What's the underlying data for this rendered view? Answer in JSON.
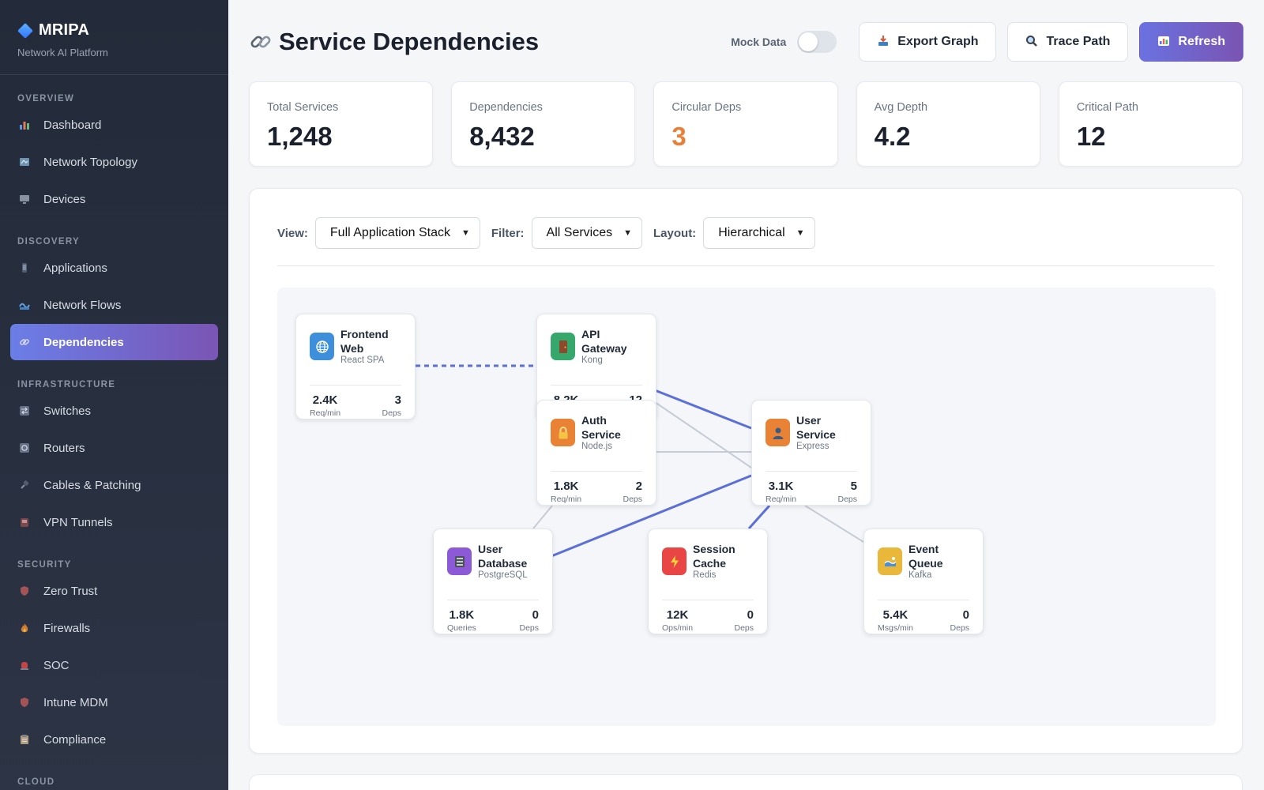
{
  "brand": {
    "name": "MRIPA",
    "subtitle": "Network AI Platform"
  },
  "sidebar": {
    "sections": [
      {
        "label": "OVERVIEW",
        "items": [
          {
            "label": "Dashboard",
            "icon": "bar-chart-icon"
          },
          {
            "label": "Network Topology",
            "icon": "map-icon"
          },
          {
            "label": "Devices",
            "icon": "monitor-icon"
          }
        ]
      },
      {
        "label": "DISCOVERY",
        "items": [
          {
            "label": "Applications",
            "icon": "phone-icon"
          },
          {
            "label": "Network Flows",
            "icon": "wave-icon"
          },
          {
            "label": "Dependencies",
            "icon": "link-icon",
            "active": true
          }
        ]
      },
      {
        "label": "INFRASTRUCTURE",
        "items": [
          {
            "label": "Switches",
            "icon": "switch-icon"
          },
          {
            "label": "Routers",
            "icon": "router-icon"
          },
          {
            "label": "Cables & Patching",
            "icon": "plug-icon"
          },
          {
            "label": "VPN Tunnels",
            "icon": "tunnel-icon"
          }
        ]
      },
      {
        "label": "SECURITY",
        "items": [
          {
            "label": "Zero Trust",
            "icon": "shield-icon"
          },
          {
            "label": "Firewalls",
            "icon": "fire-icon"
          },
          {
            "label": "SOC",
            "icon": "alarm-icon"
          },
          {
            "label": "Intune MDM",
            "icon": "shield-icon"
          },
          {
            "label": "Compliance",
            "icon": "clipboard-icon"
          }
        ]
      },
      {
        "label": "CLOUD",
        "items": []
      }
    ]
  },
  "header": {
    "title": "Service Dependencies",
    "mock_label": "Mock Data",
    "mock_enabled": false,
    "buttons": {
      "export": "Export Graph",
      "trace": "Trace Path",
      "refresh": "Refresh"
    }
  },
  "stats": [
    {
      "label": "Total Services",
      "value": "1,248"
    },
    {
      "label": "Dependencies",
      "value": "8,432"
    },
    {
      "label": "Circular Deps",
      "value": "3",
      "color": "#e8803a"
    },
    {
      "label": "Avg Depth",
      "value": "4.2"
    },
    {
      "label": "Critical Path",
      "value": "12"
    }
  ],
  "controls": {
    "view_label": "View:",
    "view_value": "Full Application Stack",
    "filter_label": "Filter:",
    "filter_value": "All Services",
    "layout_label": "Layout:",
    "layout_value": "Hierarchical"
  },
  "graph": {
    "nodes": [
      {
        "id": "frontend",
        "name": [
          "Frontend",
          "Web"
        ],
        "tech": "React SPA",
        "color": "#3d8fdc",
        "icon": "globe-icon",
        "m1": "2.4K",
        "m1_label": "Req/min",
        "m2": "3",
        "m2_label": "Deps"
      },
      {
        "id": "gateway",
        "name": [
          "API",
          "Gateway"
        ],
        "tech": "Kong",
        "color": "#36a86b",
        "icon": "door-icon",
        "m1": "8.2K",
        "m1_label": "Req/min",
        "m2": "12",
        "m2_label": "Deps"
      },
      {
        "id": "auth",
        "name": [
          "Auth",
          "Service"
        ],
        "tech": "Node.js",
        "color": "#e98235",
        "icon": "lock-icon",
        "m1": "1.8K",
        "m1_label": "Req/min",
        "m2": "2",
        "m2_label": "Deps"
      },
      {
        "id": "user",
        "name": [
          "User",
          "Service"
        ],
        "tech": "Express",
        "color": "#e98235",
        "icon": "user-icon",
        "m1": "3.1K",
        "m1_label": "Req/min",
        "m2": "5",
        "m2_label": "Deps"
      },
      {
        "id": "userdb",
        "name": [
          "User",
          "Database"
        ],
        "tech": "PostgreSQL",
        "color": "#8c5ad6",
        "icon": "database-icon",
        "m1": "1.8K",
        "m1_label": "Queries",
        "m2": "0",
        "m2_label": "Deps"
      },
      {
        "id": "cache",
        "name": [
          "Session",
          "Cache"
        ],
        "tech": "Redis",
        "color": "#e94545",
        "icon": "bolt-icon",
        "m1": "12K",
        "m1_label": "Ops/min",
        "m2": "0",
        "m2_label": "Deps"
      },
      {
        "id": "queue",
        "name": [
          "Event",
          "Queue"
        ],
        "tech": "Kafka",
        "color": "#e9b83a",
        "icon": "queue-icon",
        "m1": "5.4K",
        "m1_label": "Msgs/min",
        "m2": "0",
        "m2_label": "Deps"
      }
    ],
    "edges": [
      {
        "from": "frontend",
        "to": "gateway",
        "style": "dashed"
      },
      {
        "from": "gateway",
        "to": "user",
        "style": "primary"
      },
      {
        "from": "gateway",
        "to": "user",
        "style": "secondary"
      },
      {
        "from": "auth",
        "to": "user",
        "style": "secondary"
      },
      {
        "from": "auth",
        "to": "userdb",
        "style": "secondary"
      },
      {
        "from": "user",
        "to": "userdb",
        "style": "primary"
      },
      {
        "from": "user",
        "to": "cache",
        "style": "primary"
      },
      {
        "from": "user",
        "to": "queue",
        "style": "secondary"
      }
    ]
  }
}
